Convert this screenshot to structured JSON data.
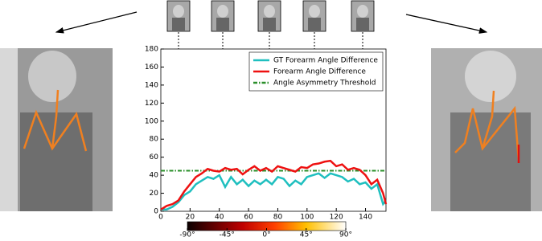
{
  "chart_data": {
    "type": "line",
    "x": [
      0,
      4,
      8,
      12,
      16,
      20,
      24,
      28,
      32,
      36,
      40,
      44,
      48,
      52,
      56,
      60,
      64,
      68,
      72,
      76,
      80,
      84,
      88,
      92,
      96,
      100,
      104,
      108,
      112,
      116,
      120,
      124,
      128,
      132,
      136,
      140,
      144,
      148,
      152,
      154
    ],
    "series": [
      {
        "name": "GT Forearm Angle Difference",
        "color": "#1fbfbf",
        "values": [
          2,
          2,
          5,
          10,
          18,
          22,
          30,
          34,
          38,
          36,
          40,
          27,
          38,
          30,
          35,
          28,
          34,
          30,
          35,
          30,
          38,
          36,
          28,
          34,
          30,
          38,
          40,
          42,
          37,
          42,
          40,
          38,
          33,
          36,
          30,
          32,
          25,
          30,
          8,
          12
        ]
      },
      {
        "name": "Forearm Angle Difference",
        "color": "#ee1111",
        "values": [
          2,
          6,
          8,
          12,
          22,
          30,
          38,
          42,
          47,
          45,
          44,
          48,
          46,
          47,
          41,
          46,
          50,
          45,
          48,
          44,
          50,
          48,
          46,
          44,
          49,
          48,
          52,
          53,
          55,
          56,
          50,
          52,
          46,
          48,
          46,
          40,
          30,
          35,
          20,
          8
        ]
      }
    ],
    "hlines": [
      {
        "name": "Angle Asymmetry Threshold",
        "color": "#2a8f2a",
        "value": 45
      }
    ],
    "xlim": [
      0,
      154
    ],
    "xticks": [
      0,
      20,
      40,
      60,
      80,
      100,
      120,
      140
    ],
    "ylim": [
      0,
      180
    ],
    "yticks": [
      0,
      20,
      40,
      60,
      80,
      100,
      120,
      140,
      160,
      180
    ],
    "legend": "upper right",
    "colorbar": {
      "lim": [
        -90,
        90
      ],
      "ticks": [
        {
          "value": -90,
          "label": "-90°"
        },
        {
          "value": -45,
          "label": "-45°"
        },
        {
          "value": 0,
          "label": "0°"
        },
        {
          "value": 45,
          "label": "45°"
        },
        {
          "value": 90,
          "label": "90°"
        }
      ]
    }
  }
}
